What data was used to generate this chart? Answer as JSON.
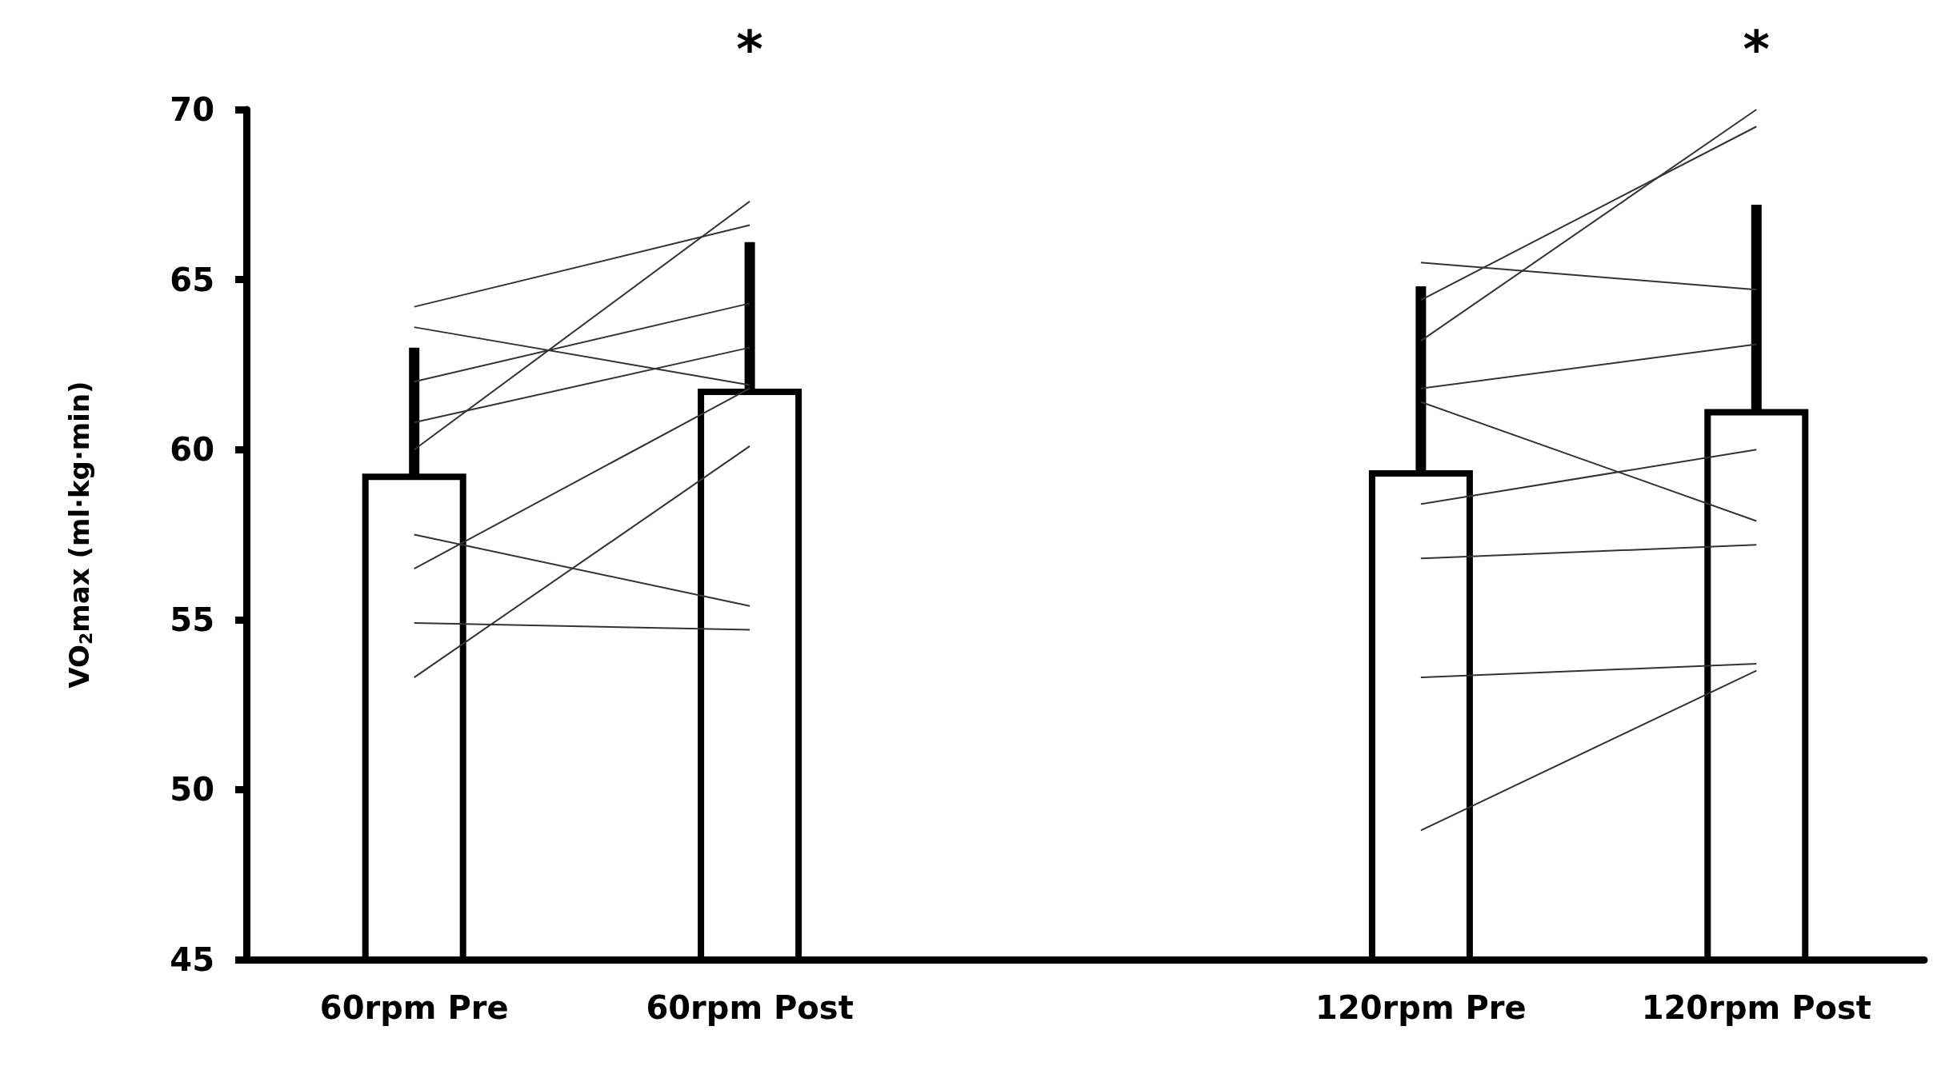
{
  "chart_data": {
    "type": "bar",
    "ylabel": "VO$_{2}$max (ml·kg·min)",
    "categories": [
      "60rpm Pre",
      "60rpm Post",
      null,
      "120rpm Pre",
      "120rpm Post"
    ],
    "ylim": [
      45,
      70
    ],
    "yticks": [
      45,
      50,
      55,
      60,
      65,
      70
    ],
    "marker": "none",
    "annotations": [
      "*",
      "*"
    ],
    "series": [
      {
        "color": "#ffffff",
        "base": [
          45,
          45,
          null,
          45,
          45
        ],
        "values": [
          14.2,
          16.7,
          null,
          14.3,
          16.1
        ],
        "errors": [
          [
            59.2,
            63.0
          ],
          [
            61.7,
            66.1
          ],
          null,
          [
            59.3,
            64.8
          ],
          [
            61.1,
            67.2
          ]
        ]
      },
      {
        "type": "line",
        "color": "#333333",
        "values": [
          64.2,
          66.6,
          null,
          null,
          null
        ]
      },
      {
        "type": "line",
        "color": "#333333",
        "values": [
          63.6,
          61.9,
          null,
          null,
          null
        ]
      },
      {
        "type": "line",
        "color": "#333333",
        "values": [
          62.0,
          64.3,
          null,
          null,
          null
        ]
      },
      {
        "type": "line",
        "color": "#333333",
        "values": [
          60.8,
          63.0,
          null,
          null,
          null
        ]
      },
      {
        "type": "line",
        "color": "#333333",
        "values": [
          60.0,
          67.3,
          null,
          null,
          null
        ]
      },
      {
        "type": "line",
        "color": "#333333",
        "values": [
          56.5,
          61.8,
          null,
          null,
          null
        ]
      },
      {
        "type": "line",
        "color": "#333333",
        "values": [
          57.5,
          55.4,
          null,
          null,
          null
        ]
      },
      {
        "type": "line",
        "color": "#333333",
        "values": [
          54.9,
          54.7,
          null,
          null,
          null
        ]
      },
      {
        "type": "line",
        "color": "#333333",
        "values": [
          53.3,
          60.1,
          null,
          null,
          null
        ]
      },
      {
        "type": "line",
        "color": "#333333",
        "values": [
          null,
          null,
          null,
          65.5,
          64.7
        ]
      },
      {
        "type": "line",
        "color": "#333333",
        "values": [
          null,
          null,
          null,
          64.4,
          69.5
        ]
      },
      {
        "type": "line",
        "color": "#333333",
        "values": [
          null,
          null,
          null,
          63.2,
          70.0
        ]
      },
      {
        "type": "line",
        "color": "#333333",
        "values": [
          null,
          null,
          null,
          61.8,
          63.1
        ]
      },
      {
        "type": "line",
        "color": "#333333",
        "values": [
          null,
          null,
          null,
          61.4,
          57.9
        ]
      },
      {
        "type": "line",
        "color": "#333333",
        "values": [
          null,
          null,
          null,
          58.4,
          60.0
        ]
      },
      {
        "type": "line",
        "color": "#333333",
        "values": [
          null,
          null,
          null,
          56.8,
          57.2
        ]
      },
      {
        "type": "line",
        "color": "#333333",
        "values": [
          null,
          null,
          null,
          53.3,
          53.7
        ]
      },
      {
        "type": "line",
        "color": "#333333",
        "values": [
          null,
          null,
          null,
          48.8,
          53.5
        ]
      }
    ]
  }
}
